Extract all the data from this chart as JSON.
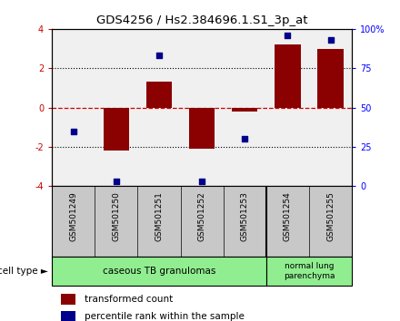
{
  "title": "GDS4256 / Hs2.384696.1.S1_3p_at",
  "samples": [
    "GSM501249",
    "GSM501250",
    "GSM501251",
    "GSM501252",
    "GSM501253",
    "GSM501254",
    "GSM501255"
  ],
  "transformed_count": [
    0.0,
    -2.2,
    1.3,
    -2.1,
    -0.2,
    3.2,
    3.0
  ],
  "percentile_rank": [
    35,
    3,
    83,
    3,
    30,
    96,
    93
  ],
  "group1_count": 5,
  "group2_count": 2,
  "group1_label": "caseous TB granulomas",
  "group2_label": "normal lung\nparenchyma",
  "cell_type_label": "cell type",
  "ylim": [
    -4,
    4
  ],
  "yticks": [
    -4,
    -2,
    0,
    2,
    4
  ],
  "right_yticks": [
    0,
    25,
    50,
    75,
    100
  ],
  "right_yticklabels": [
    "0",
    "25",
    "50",
    "75",
    "100%"
  ],
  "bar_color": "#8B0000",
  "dot_color": "#00008B",
  "plot_bg": "#F0F0F0",
  "group1_color": "#90EE90",
  "group2_color": "#90EE90",
  "legend_red_label": "transformed count",
  "legend_blue_label": "percentile rank within the sample",
  "zero_line_color": "#CC0000",
  "dotted_line_color": "#000000",
  "sample_box_color": "#C8C8C8",
  "arrow_char": "►"
}
